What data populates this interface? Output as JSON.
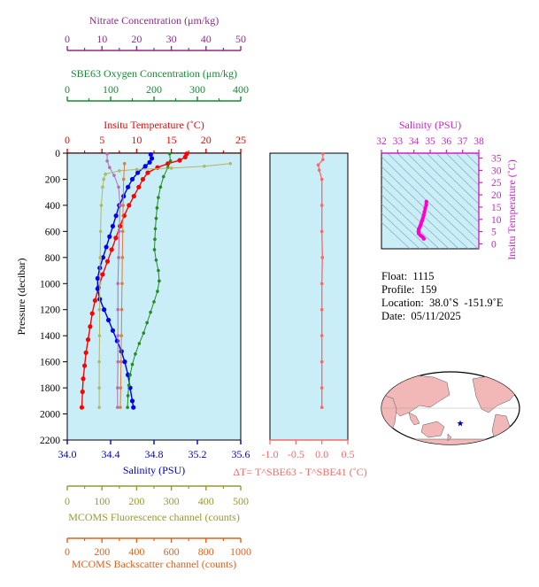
{
  "chart_data": [
    {
      "type": "line",
      "panel": "profile",
      "ylabel": "Pressure (decibar)",
      "y_ticks": [
        0,
        200,
        400,
        600,
        800,
        1000,
        1200,
        1400,
        1600,
        1800,
        2000,
        2200
      ],
      "ylim": [
        2200,
        0
      ],
      "grid": false,
      "axes": {
        "nitrate": {
          "title": "Nitrate Concentration (μm/kg)",
          "ticks": [
            0,
            10,
            20,
            30,
            40,
            50
          ],
          "range": [
            0,
            50
          ],
          "color": "#8b2d8b"
        },
        "oxygen": {
          "title": "SBE63 Oxygen Concentration (μm/kg)",
          "ticks": [
            0,
            100,
            200,
            300,
            400
          ],
          "range": [
            0,
            400
          ],
          "color": "#138a2f"
        },
        "temperature": {
          "title": "Insitu Temperature (˚C)",
          "ticks": [
            0,
            5,
            10,
            15,
            20,
            25
          ],
          "range": [
            0,
            25
          ],
          "color": "#ff0000"
        },
        "salinity": {
          "title": "Salinity (PSU)",
          "ticks": [
            "34.0",
            "34.4",
            "34.8",
            "35.2",
            "35.6"
          ],
          "range": [
            34.0,
            35.6
          ],
          "color": "#0000cc"
        },
        "fluorescence": {
          "title": "MCOMS Fluorescence channel (counts)",
          "ticks": [
            0,
            100,
            200,
            300,
            400,
            500
          ],
          "range": [
            0,
            500
          ],
          "color": "#999933"
        },
        "backscatter": {
          "title": "MCOMS Backscatter channel (counts)",
          "ticks": [
            0,
            200,
            400,
            600,
            800,
            1000
          ],
          "range": [
            0,
            1000
          ],
          "color": "#e0601a"
        }
      },
      "series": [
        {
          "axis": "temperature",
          "color": "#ff0000",
          "points": [
            [
              17.2,
              5
            ],
            [
              17.0,
              30
            ],
            [
              16.2,
              55
            ],
            [
              14.5,
              80
            ],
            [
              13.0,
              110
            ],
            [
              11.6,
              150
            ],
            [
              10.9,
              200
            ],
            [
              10.3,
              260
            ],
            [
              9.6,
              330
            ],
            [
              8.9,
              400
            ],
            [
              8.2,
              480
            ],
            [
              7.6,
              560
            ],
            [
              7.0,
              650
            ],
            [
              6.4,
              740
            ],
            [
              5.8,
              830
            ],
            [
              5.1,
              930
            ],
            [
              4.5,
              1030
            ],
            [
              4.0,
              1130
            ],
            [
              3.6,
              1230
            ],
            [
              3.3,
              1330
            ],
            [
              3.0,
              1430
            ],
            [
              2.7,
              1530
            ],
            [
              2.5,
              1630
            ],
            [
              2.3,
              1730
            ],
            [
              2.2,
              1830
            ],
            [
              2.1,
              1950
            ]
          ]
        },
        {
          "axis": "salinity",
          "color": "#0000ee",
          "points": [
            [
              34.77,
              10
            ],
            [
              34.78,
              40
            ],
            [
              34.76,
              70
            ],
            [
              34.72,
              100
            ],
            [
              34.65,
              150
            ],
            [
              34.6,
              200
            ],
            [
              34.56,
              260
            ],
            [
              34.52,
              330
            ],
            [
              34.48,
              400
            ],
            [
              34.45,
              480
            ],
            [
              34.42,
              560
            ],
            [
              34.39,
              640
            ],
            [
              34.36,
              720
            ],
            [
              34.33,
              800
            ],
            [
              34.3,
              880
            ],
            [
              34.28,
              960
            ],
            [
              34.28,
              1040
            ],
            [
              34.3,
              1120
            ],
            [
              34.34,
              1200
            ],
            [
              34.38,
              1280
            ],
            [
              34.42,
              1360
            ],
            [
              34.46,
              1440
            ],
            [
              34.5,
              1520
            ],
            [
              34.53,
              1600
            ],
            [
              34.56,
              1700
            ],
            [
              34.58,
              1800
            ],
            [
              34.6,
              1900
            ],
            [
              34.61,
              1950
            ]
          ]
        },
        {
          "axis": "oxygen",
          "color": "#228b22",
          "points": [
            [
              236,
              5
            ],
            [
              238,
              60
            ],
            [
              232,
              110
            ],
            [
              222,
              180
            ],
            [
              215,
              260
            ],
            [
              210,
              340
            ],
            [
              207,
              420
            ],
            [
              205,
              500
            ],
            [
              203,
              580
            ],
            [
              202,
              660
            ],
            [
              201,
              740
            ],
            [
              205,
              820
            ],
            [
              210,
              900
            ],
            [
              212,
              980
            ],
            [
              208,
              1060
            ],
            [
              200,
              1140
            ],
            [
              192,
              1220
            ],
            [
              184,
              1300
            ],
            [
              176,
              1380
            ],
            [
              166,
              1460
            ],
            [
              157,
              1540
            ],
            [
              150,
              1620
            ],
            [
              145,
              1700
            ],
            [
              142,
              1780
            ],
            [
              140,
              1860
            ],
            [
              139,
              1950
            ]
          ]
        },
        {
          "axis": "nitrate",
          "color": "#b26fb2",
          "points": [
            [
              11.5,
              5
            ],
            [
              11.5,
              60
            ],
            [
              12.2,
              110
            ],
            [
              13.5,
              170
            ],
            [
              14.8,
              260
            ],
            [
              15.2,
              400
            ],
            [
              15.0,
              600
            ],
            [
              14.8,
              800
            ],
            [
              14.6,
              1000
            ],
            [
              14.6,
              1200
            ],
            [
              14.6,
              1400
            ],
            [
              14.6,
              1600
            ],
            [
              14.5,
              1800
            ],
            [
              14.5,
              1950
            ]
          ]
        },
        {
          "axis": "fluorescence",
          "color": "#b5b568",
          "points": [
            [
              470,
              80
            ],
            [
              395,
              100
            ],
            [
              300,
              115
            ],
            [
              200,
              125
            ],
            [
              150,
              135
            ],
            [
              110,
              160
            ],
            [
              105,
              200
            ],
            [
              102,
              260
            ],
            [
              98,
              400
            ],
            [
              96,
              600
            ],
            [
              95,
              800
            ],
            [
              94,
              1000
            ],
            [
              93,
              1200
            ],
            [
              93,
              1400
            ],
            [
              92,
              1600
            ],
            [
              92,
              1800
            ],
            [
              92,
              1950
            ]
          ]
        },
        {
          "axis": "backscatter",
          "color": "#e07b3c",
          "points": [
            [
              330,
              80
            ],
            [
              325,
              200
            ],
            [
              322,
              400
            ],
            [
              320,
              600
            ],
            [
              318,
              800
            ],
            [
              316,
              1000
            ],
            [
              314,
              1200
            ],
            [
              312,
              1400
            ],
            [
              310,
              1600
            ],
            [
              308,
              1800
            ],
            [
              306,
              1950
            ]
          ]
        }
      ]
    },
    {
      "type": "line",
      "panel": "delta-temperature",
      "xlabel": "ΔT= T^SBE63 - T^SBE41 (˚C)",
      "x_ticks": [
        "-1.0",
        "-0.5",
        "0.0",
        "0.5"
      ],
      "xlim": [
        -1.0,
        0.5
      ],
      "ylim": [
        2200,
        0
      ],
      "series": [
        {
          "color": "#ff6666",
          "points": [
            [
              0.02,
              5
            ],
            [
              0.02,
              50
            ],
            [
              -0.07,
              90
            ],
            [
              -0.05,
              130
            ],
            [
              0.0,
              200
            ],
            [
              0.0,
              400
            ],
            [
              0.0,
              600
            ],
            [
              0.01,
              800
            ],
            [
              0.0,
              1000
            ],
            [
              0.0,
              1200
            ],
            [
              0.0,
              1400
            ],
            [
              0.0,
              1600
            ],
            [
              0.0,
              1800
            ],
            [
              0.0,
              1950
            ]
          ]
        }
      ]
    },
    {
      "type": "scatter",
      "panel": "ts-diagram",
      "x_axis": {
        "title": "Salinity (PSU)",
        "ticks": [
          32,
          33,
          34,
          35,
          36,
          37,
          38
        ],
        "range": [
          32,
          38
        ]
      },
      "y_axis": {
        "title": "Insitu Temperature (˚C)",
        "ticks": [
          0,
          5,
          10,
          15,
          20,
          25,
          30,
          35
        ],
        "range": [
          -2,
          37
        ]
      },
      "color": "#ff00cc",
      "points": [
        [
          34.77,
          17.2
        ],
        [
          34.76,
          16.0
        ],
        [
          34.7,
          14.5
        ],
        [
          34.65,
          13.0
        ],
        [
          34.6,
          11.6
        ],
        [
          34.55,
          10.5
        ],
        [
          34.5,
          9.5
        ],
        [
          34.45,
          8.5
        ],
        [
          34.4,
          7.5
        ],
        [
          34.36,
          6.8
        ],
        [
          34.3,
          6.0
        ],
        [
          34.28,
          5.0
        ],
        [
          34.3,
          4.2
        ],
        [
          34.4,
          3.5
        ],
        [
          34.5,
          3.0
        ],
        [
          34.58,
          2.5
        ],
        [
          34.61,
          2.1
        ]
      ]
    },
    {
      "type": "map",
      "panel": "world-location",
      "marker": {
        "lat": -38.0,
        "lon": -151.9,
        "color": "#0000cc"
      }
    }
  ],
  "info": {
    "float_label": "Float:",
    "float_value": "1115",
    "profile_label": "Profile:",
    "profile_value": "159",
    "location_label": "Location:",
    "location_value": "38.0˚S  -151.9˚E",
    "date_label": "Date:",
    "date_value": "05/11/2025"
  }
}
